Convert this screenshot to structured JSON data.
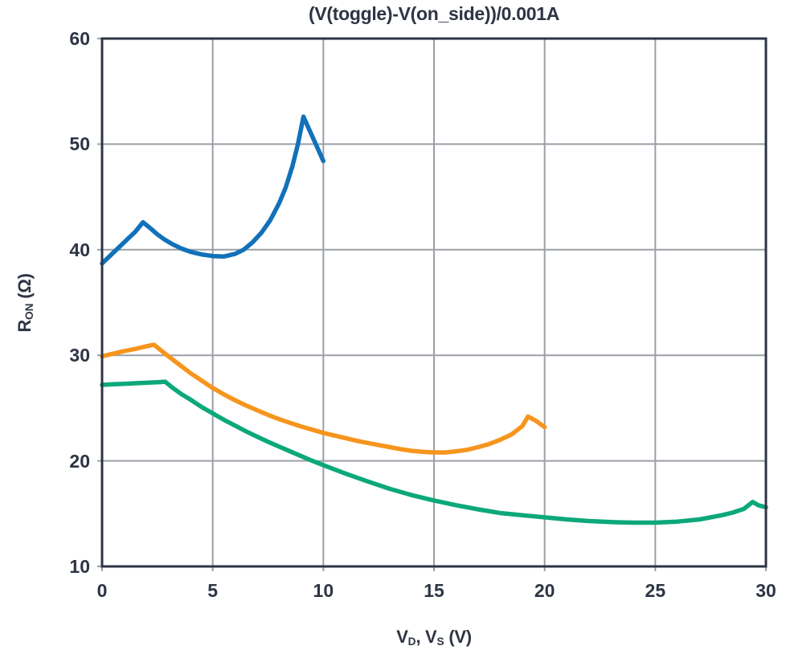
{
  "chart_data": {
    "type": "line",
    "title": "(V(toggle)-V(on_side))/0.001A",
    "xlabel": "V_D, V_S (V)",
    "ylabel": "R_ON (Ω)",
    "xlabel_parts": [
      {
        "text": "V",
        "sub": false
      },
      {
        "text": "D",
        "sub": true
      },
      {
        "text": ", V",
        "sub": false
      },
      {
        "text": "S",
        "sub": true
      },
      {
        "text": " (V)",
        "sub": false
      }
    ],
    "ylabel_parts": [
      {
        "text": "R",
        "sub": false
      },
      {
        "text": "ON",
        "sub": true
      },
      {
        "text": " (Ω)",
        "sub": false
      }
    ],
    "xlim": [
      0,
      30
    ],
    "ylim": [
      10,
      60
    ],
    "xticks": [
      0,
      5,
      10,
      15,
      20,
      25,
      30
    ],
    "yticks": [
      10,
      20,
      30,
      40,
      50,
      60
    ],
    "grid": true,
    "legend": "none",
    "colors": {
      "frame": "#2e3444",
      "grid": "#9b9fa6",
      "text": "#2e3444",
      "background": "#ffffff"
    },
    "series": [
      {
        "name": "blue-curve",
        "color": "#1171b9",
        "points": [
          [
            0,
            38.7
          ],
          [
            0.4,
            39.5
          ],
          [
            0.8,
            40.3
          ],
          [
            1.2,
            41.1
          ],
          [
            1.5,
            41.7
          ],
          [
            1.85,
            42.6
          ],
          [
            2.2,
            42.0
          ],
          [
            2.5,
            41.45
          ],
          [
            2.8,
            41.0
          ],
          [
            3.2,
            40.5
          ],
          [
            3.6,
            40.1
          ],
          [
            4,
            39.8
          ],
          [
            4.5,
            39.55
          ],
          [
            5,
            39.4
          ],
          [
            5.5,
            39.35
          ],
          [
            6,
            39.6
          ],
          [
            6.4,
            40.0
          ],
          [
            6.8,
            40.7
          ],
          [
            7.2,
            41.6
          ],
          [
            7.6,
            42.8
          ],
          [
            8,
            44.4
          ],
          [
            8.3,
            45.9
          ],
          [
            8.6,
            47.9
          ],
          [
            8.85,
            50.0
          ],
          [
            9.1,
            52.6
          ],
          [
            9.4,
            51.2
          ],
          [
            9.7,
            49.8
          ],
          [
            10,
            48.4
          ]
        ]
      },
      {
        "name": "orange-curve",
        "color": "#f6951d",
        "points": [
          [
            0,
            29.9
          ],
          [
            0.5,
            30.15
          ],
          [
            1,
            30.4
          ],
          [
            1.5,
            30.6
          ],
          [
            2,
            30.85
          ],
          [
            2.35,
            31.0
          ],
          [
            2.7,
            30.4
          ],
          [
            3,
            29.9
          ],
          [
            3.5,
            29.1
          ],
          [
            4,
            28.3
          ],
          [
            4.5,
            27.6
          ],
          [
            5,
            26.9
          ],
          [
            5.5,
            26.3
          ],
          [
            6,
            25.75
          ],
          [
            6.5,
            25.25
          ],
          [
            7,
            24.8
          ],
          [
            7.5,
            24.35
          ],
          [
            8,
            23.95
          ],
          [
            8.5,
            23.6
          ],
          [
            9,
            23.25
          ],
          [
            9.5,
            22.95
          ],
          [
            10,
            22.65
          ],
          [
            10.5,
            22.4
          ],
          [
            11,
            22.15
          ],
          [
            11.5,
            21.9
          ],
          [
            12,
            21.7
          ],
          [
            12.5,
            21.5
          ],
          [
            13,
            21.3
          ],
          [
            13.5,
            21.1
          ],
          [
            14,
            20.95
          ],
          [
            14.5,
            20.85
          ],
          [
            15,
            20.8
          ],
          [
            15.5,
            20.8
          ],
          [
            16,
            20.9
          ],
          [
            16.5,
            21.05
          ],
          [
            17,
            21.3
          ],
          [
            17.5,
            21.6
          ],
          [
            18,
            22.0
          ],
          [
            18.5,
            22.5
          ],
          [
            19,
            23.3
          ],
          [
            19.25,
            24.2
          ],
          [
            19.6,
            23.8
          ],
          [
            20,
            23.2
          ]
        ]
      },
      {
        "name": "green-curve",
        "color": "#0ca87a",
        "points": [
          [
            0,
            27.2
          ],
          [
            0.5,
            27.25
          ],
          [
            1,
            27.3
          ],
          [
            1.5,
            27.35
          ],
          [
            2,
            27.4
          ],
          [
            2.5,
            27.45
          ],
          [
            2.85,
            27.5
          ],
          [
            3.2,
            26.9
          ],
          [
            3.6,
            26.3
          ],
          [
            4,
            25.8
          ],
          [
            4.5,
            25.1
          ],
          [
            5,
            24.5
          ],
          [
            5.5,
            23.9
          ],
          [
            6,
            23.35
          ],
          [
            6.5,
            22.8
          ],
          [
            7,
            22.3
          ],
          [
            7.5,
            21.8
          ],
          [
            8,
            21.35
          ],
          [
            8.5,
            20.9
          ],
          [
            9,
            20.45
          ],
          [
            9.5,
            20.0
          ],
          [
            10,
            19.6
          ],
          [
            11,
            18.8
          ],
          [
            12,
            18.05
          ],
          [
            13,
            17.35
          ],
          [
            14,
            16.75
          ],
          [
            15,
            16.25
          ],
          [
            16,
            15.8
          ],
          [
            17,
            15.4
          ],
          [
            18,
            15.05
          ],
          [
            19,
            14.85
          ],
          [
            20,
            14.65
          ],
          [
            21,
            14.45
          ],
          [
            22,
            14.3
          ],
          [
            23,
            14.2
          ],
          [
            24,
            14.15
          ],
          [
            25,
            14.15
          ],
          [
            26,
            14.25
          ],
          [
            27,
            14.45
          ],
          [
            28,
            14.85
          ],
          [
            28.5,
            15.1
          ],
          [
            29,
            15.45
          ],
          [
            29.4,
            16.1
          ],
          [
            29.65,
            15.8
          ],
          [
            30,
            15.6
          ]
        ]
      }
    ]
  }
}
